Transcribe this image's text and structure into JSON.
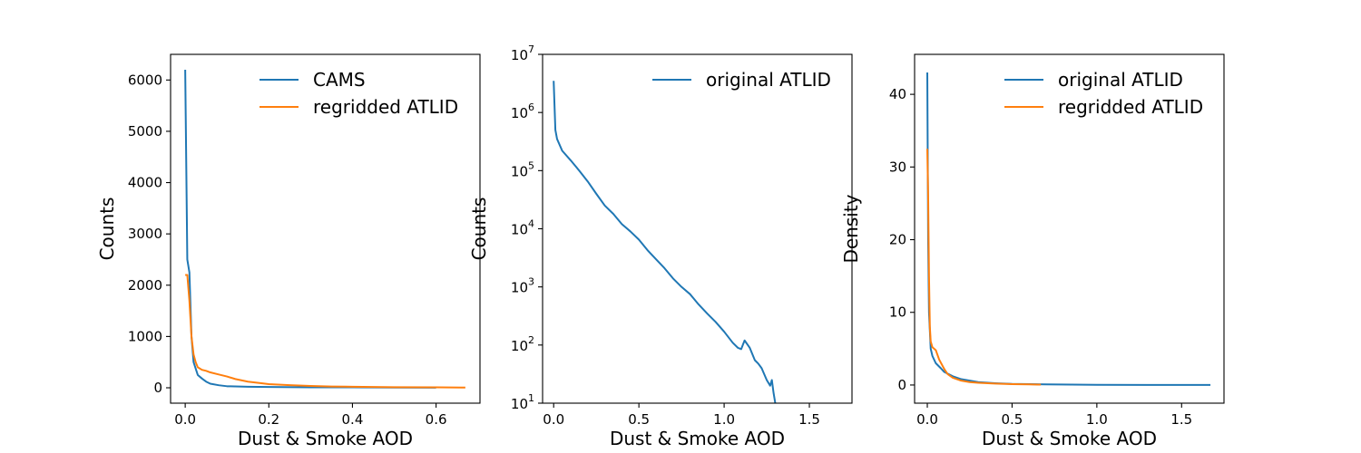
{
  "chart_data": [
    {
      "type": "line",
      "xlabel": "Dust & Smoke AOD",
      "ylabel": "Counts",
      "xlim": [
        -0.035,
        0.705
      ],
      "ylim": [
        -300,
        6500
      ],
      "yscale": "linear",
      "xticks": [
        0.0,
        0.2,
        0.4,
        0.6
      ],
      "xtick_labels": [
        "0.0",
        "0.2",
        "0.4",
        "0.6"
      ],
      "yticks": [
        0,
        1000,
        2000,
        3000,
        4000,
        5000,
        6000
      ],
      "ytick_labels": [
        "0",
        "1000",
        "2000",
        "3000",
        "4000",
        "5000",
        "6000"
      ],
      "legend_position": "upper right",
      "series": [
        {
          "name": "CAMS",
          "color": "#1f77b4",
          "x": [
            0.0,
            0.005,
            0.01,
            0.015,
            0.02,
            0.03,
            0.04,
            0.05,
            0.06,
            0.08,
            0.1,
            0.15,
            0.2,
            0.3,
            0.4,
            0.5,
            0.6
          ],
          "y": [
            6200,
            2500,
            2250,
            1000,
            500,
            250,
            180,
            120,
            80,
            50,
            30,
            20,
            15,
            10,
            8,
            5,
            3
          ]
        },
        {
          "name": "regridded ATLID",
          "color": "#ff7f0e",
          "x": [
            0.0,
            0.005,
            0.01,
            0.015,
            0.02,
            0.025,
            0.03,
            0.04,
            0.05,
            0.06,
            0.08,
            0.1,
            0.12,
            0.15,
            0.18,
            0.2,
            0.25,
            0.3,
            0.35,
            0.4,
            0.5,
            0.6,
            0.67
          ],
          "y": [
            2200,
            2200,
            1700,
            1000,
            650,
            500,
            400,
            350,
            330,
            300,
            260,
            220,
            170,
            120,
            90,
            70,
            50,
            35,
            25,
            20,
            12,
            8,
            5
          ]
        }
      ]
    },
    {
      "type": "line",
      "xlabel": "Dust & Smoke AOD",
      "ylabel": "Counts",
      "xlim": [
        -0.065,
        1.75
      ],
      "ylim": [
        10,
        10000000
      ],
      "yscale": "log",
      "xticks": [
        0.0,
        0.5,
        1.0,
        1.5
      ],
      "xtick_labels": [
        "0.0",
        "0.5",
        "1.0",
        "1.5"
      ],
      "yticks": [
        10,
        100,
        1000,
        10000,
        100000,
        1000000,
        10000000
      ],
      "ytick_bases": [
        "10",
        "10",
        "10",
        "10",
        "10",
        "10",
        "10"
      ],
      "ytick_exponents": [
        "1",
        "2",
        "3",
        "4",
        "5",
        "6",
        "7"
      ],
      "legend_position": "upper right",
      "series": [
        {
          "name": "original ATLID",
          "color": "#1f77b4",
          "x": [
            0.0,
            0.01,
            0.02,
            0.05,
            0.1,
            0.15,
            0.2,
            0.25,
            0.3,
            0.35,
            0.4,
            0.45,
            0.5,
            0.55,
            0.6,
            0.65,
            0.7,
            0.75,
            0.8,
            0.85,
            0.9,
            0.95,
            1.0,
            1.05,
            1.08,
            1.1,
            1.12,
            1.15,
            1.18,
            1.2,
            1.22,
            1.25,
            1.27,
            1.28,
            1.29,
            1.3
          ],
          "y": [
            3500000,
            500000,
            350000,
            220000,
            150000,
            100000,
            65000,
            40000,
            25000,
            18000,
            12000,
            9000,
            6500,
            4300,
            3000,
            2100,
            1400,
            1000,
            750,
            500,
            350,
            250,
            170,
            110,
            90,
            85,
            120,
            90,
            55,
            48,
            40,
            25,
            20,
            25,
            15,
            10
          ]
        }
      ]
    },
    {
      "type": "line",
      "xlabel": "Dust & Smoke AOD",
      "ylabel": "Density",
      "xlim": [
        -0.075,
        1.75
      ],
      "ylim": [
        -2.5,
        45.5
      ],
      "yscale": "linear",
      "xticks": [
        0.0,
        0.5,
        1.0,
        1.5
      ],
      "xtick_labels": [
        "0.0",
        "0.5",
        "1.0",
        "1.5"
      ],
      "yticks": [
        0,
        10,
        20,
        30,
        40
      ],
      "ytick_labels": [
        "0",
        "10",
        "20",
        "30",
        "40"
      ],
      "legend_position": "upper right",
      "series": [
        {
          "name": "original ATLID",
          "color": "#1f77b4",
          "x": [
            0.0,
            0.005,
            0.01,
            0.02,
            0.03,
            0.05,
            0.08,
            0.1,
            0.15,
            0.2,
            0.3,
            0.4,
            0.5,
            0.7,
            1.0,
            1.3,
            1.67
          ],
          "y": [
            43,
            20,
            10,
            5,
            4,
            3,
            2.3,
            1.8,
            1.2,
            0.8,
            0.4,
            0.25,
            0.15,
            0.08,
            0.03,
            0.01,
            0.005
          ]
        },
        {
          "name": "regridded ATLID",
          "color": "#ff7f0e",
          "x": [
            0.0,
            0.005,
            0.01,
            0.015,
            0.02,
            0.03,
            0.05,
            0.07,
            0.1,
            0.12,
            0.15,
            0.2,
            0.25,
            0.3,
            0.4,
            0.5,
            0.6,
            0.67
          ],
          "y": [
            32.5,
            26,
            15,
            8,
            6,
            5.2,
            4.8,
            3.5,
            2.2,
            1.5,
            1.0,
            0.6,
            0.4,
            0.3,
            0.2,
            0.12,
            0.08,
            0.05
          ]
        }
      ]
    }
  ]
}
